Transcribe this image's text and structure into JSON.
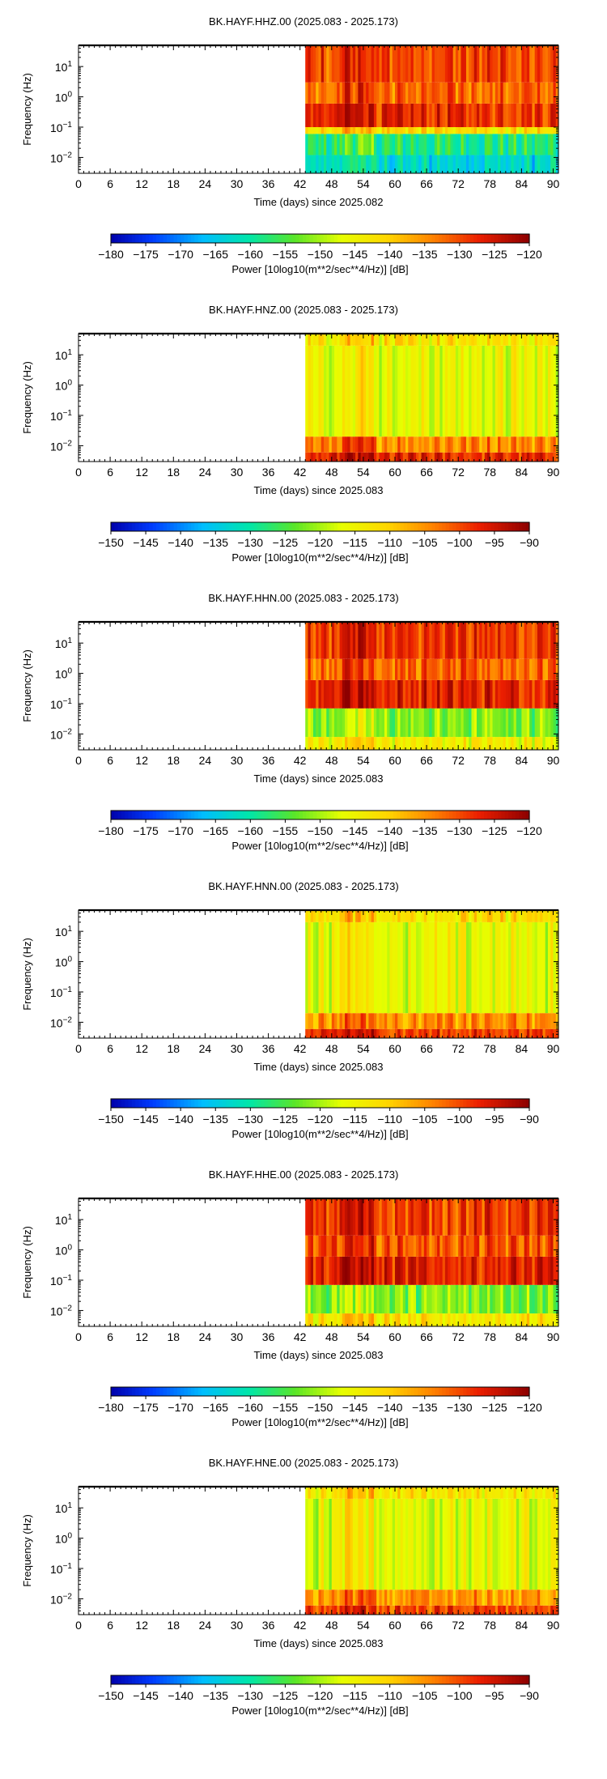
{
  "chart_data": [
    {
      "type": "heatmap",
      "title": "BK.HAYF.HHZ.00 (2025.083 - 2025.173)",
      "xlabel": "Time (days) since 2025.082",
      "ylabel": "Frequency (Hz)",
      "xlim": [
        0,
        91
      ],
      "x_ticks": [
        "0",
        "6",
        "12",
        "18",
        "24",
        "30",
        "36",
        "42",
        "48",
        "54",
        "60",
        "66",
        "72",
        "78",
        "84",
        "90"
      ],
      "yscale": "log",
      "ylim": [
        0.003,
        50
      ],
      "y_ticks": [
        {
          "mantissa": "10",
          "exp": "1"
        },
        {
          "mantissa": "10",
          "exp": "0"
        },
        {
          "mantissa": "10",
          "exp": "−1"
        },
        {
          "mantissa": "10",
          "exp": "−2"
        }
      ],
      "data_start_day": 43,
      "colorbar": {
        "label": "Power [10log10(m**2/sec**4/Hz)] [dB]",
        "range": [
          -180,
          -120
        ],
        "ticks": [
          "−180",
          "−175",
          "−170",
          "−165",
          "−160",
          "−155",
          "−150",
          "−145",
          "−140",
          "−135",
          "−130",
          "−125",
          "−120"
        ]
      },
      "bands": [
        {
          "f_min": 0.003,
          "f_max": 0.012,
          "power": -163
        },
        {
          "f_min": 0.012,
          "f_max": 0.06,
          "power": -158
        },
        {
          "f_min": 0.06,
          "f_max": 0.1,
          "power": -142
        },
        {
          "f_min": 0.1,
          "f_max": 0.6,
          "power": -128
        },
        {
          "f_min": 0.6,
          "f_max": 3,
          "power": -132
        },
        {
          "f_min": 3,
          "f_max": 50,
          "power": -130
        }
      ]
    },
    {
      "type": "heatmap",
      "title": "BK.HAYF.HNZ.00 (2025.083 - 2025.173)",
      "xlabel": "Time (days) since 2025.083",
      "ylabel": "Frequency (Hz)",
      "xlim": [
        0,
        91
      ],
      "x_ticks": [
        "0",
        "6",
        "12",
        "18",
        "24",
        "30",
        "36",
        "42",
        "48",
        "54",
        "60",
        "66",
        "72",
        "78",
        "84",
        "90"
      ],
      "yscale": "log",
      "ylim": [
        0.003,
        50
      ],
      "y_ticks": [
        {
          "mantissa": "10",
          "exp": "1"
        },
        {
          "mantissa": "10",
          "exp": "0"
        },
        {
          "mantissa": "10",
          "exp": "−1"
        },
        {
          "mantissa": "10",
          "exp": "−2"
        }
      ],
      "data_start_day": 43,
      "colorbar": {
        "label": "Power [10log10(m**2/sec**4/Hz)] [dB]",
        "range": [
          -150,
          -90
        ],
        "ticks": [
          "−150",
          "−145",
          "−140",
          "−135",
          "−130",
          "−125",
          "−120",
          "−115",
          "−110",
          "−105",
          "−100",
          "−95",
          "−90"
        ]
      },
      "bands": [
        {
          "f_min": 0.003,
          "f_max": 0.006,
          "power": -98
        },
        {
          "f_min": 0.006,
          "f_max": 0.02,
          "power": -104
        },
        {
          "f_min": 0.02,
          "f_max": 20,
          "power": -116
        },
        {
          "f_min": 20,
          "f_max": 50,
          "power": -113
        }
      ]
    },
    {
      "type": "heatmap",
      "title": "BK.HAYF.HHN.00 (2025.083 - 2025.173)",
      "xlabel": "Time (days) since 2025.083",
      "ylabel": "Frequency (Hz)",
      "xlim": [
        0,
        91
      ],
      "x_ticks": [
        "0",
        "6",
        "12",
        "18",
        "24",
        "30",
        "36",
        "42",
        "48",
        "54",
        "60",
        "66",
        "72",
        "78",
        "84",
        "90"
      ],
      "yscale": "log",
      "ylim": [
        0.003,
        50
      ],
      "y_ticks": [
        {
          "mantissa": "10",
          "exp": "1"
        },
        {
          "mantissa": "10",
          "exp": "0"
        },
        {
          "mantissa": "10",
          "exp": "−1"
        },
        {
          "mantissa": "10",
          "exp": "−2"
        }
      ],
      "data_start_day": 43,
      "colorbar": {
        "label": "Power [10log10(m**2/sec**4/Hz)] [dB]",
        "range": [
          -180,
          -120
        ],
        "ticks": [
          "−180",
          "−175",
          "−170",
          "−165",
          "−160",
          "−155",
          "−150",
          "−145",
          "−140",
          "−135",
          "−130",
          "−125",
          "−120"
        ]
      },
      "bands": [
        {
          "f_min": 0.003,
          "f_max": 0.008,
          "power": -144
        },
        {
          "f_min": 0.008,
          "f_max": 0.07,
          "power": -152
        },
        {
          "f_min": 0.07,
          "f_max": 0.6,
          "power": -127
        },
        {
          "f_min": 0.6,
          "f_max": 3,
          "power": -132
        },
        {
          "f_min": 3,
          "f_max": 50,
          "power": -129
        }
      ]
    },
    {
      "type": "heatmap",
      "title": "BK.HAYF.HNN.00 (2025.083 - 2025.173)",
      "xlabel": "Time (days) since 2025.083",
      "ylabel": "Frequency (Hz)",
      "xlim": [
        0,
        91
      ],
      "x_ticks": [
        "0",
        "6",
        "12",
        "18",
        "24",
        "30",
        "36",
        "42",
        "48",
        "54",
        "60",
        "66",
        "72",
        "78",
        "84",
        "90"
      ],
      "yscale": "log",
      "ylim": [
        0.003,
        50
      ],
      "y_ticks": [
        {
          "mantissa": "10",
          "exp": "1"
        },
        {
          "mantissa": "10",
          "exp": "0"
        },
        {
          "mantissa": "10",
          "exp": "−1"
        },
        {
          "mantissa": "10",
          "exp": "−2"
        }
      ],
      "data_start_day": 43,
      "colorbar": {
        "label": "Power [10log10(m**2/sec**4/Hz)] [dB]",
        "range": [
          -150,
          -90
        ],
        "ticks": [
          "−150",
          "−145",
          "−140",
          "−135",
          "−130",
          "−125",
          "−120",
          "−115",
          "−110",
          "−105",
          "−100",
          "−95",
          "−90"
        ]
      },
      "bands": [
        {
          "f_min": 0.003,
          "f_max": 0.006,
          "power": -99
        },
        {
          "f_min": 0.006,
          "f_max": 0.02,
          "power": -105
        },
        {
          "f_min": 0.02,
          "f_max": 20,
          "power": -116
        },
        {
          "f_min": 20,
          "f_max": 50,
          "power": -112
        }
      ]
    },
    {
      "type": "heatmap",
      "title": "BK.HAYF.HHE.00 (2025.083 - 2025.173)",
      "xlabel": "Time (days) since 2025.083",
      "ylabel": "Frequency (Hz)",
      "xlim": [
        0,
        91
      ],
      "x_ticks": [
        "0",
        "6",
        "12",
        "18",
        "24",
        "30",
        "36",
        "42",
        "48",
        "54",
        "60",
        "66",
        "72",
        "78",
        "84",
        "90"
      ],
      "yscale": "log",
      "ylim": [
        0.003,
        50
      ],
      "y_ticks": [
        {
          "mantissa": "10",
          "exp": "1"
        },
        {
          "mantissa": "10",
          "exp": "0"
        },
        {
          "mantissa": "10",
          "exp": "−1"
        },
        {
          "mantissa": "10",
          "exp": "−2"
        }
      ],
      "data_start_day": 43,
      "colorbar": {
        "label": "Power [10log10(m**2/sec**4/Hz)] [dB]",
        "range": [
          -180,
          -120
        ],
        "ticks": [
          "−180",
          "−175",
          "−170",
          "−165",
          "−160",
          "−155",
          "−150",
          "−145",
          "−140",
          "−135",
          "−130",
          "−125",
          "−120"
        ]
      },
      "bands": [
        {
          "f_min": 0.003,
          "f_max": 0.008,
          "power": -143
        },
        {
          "f_min": 0.008,
          "f_max": 0.07,
          "power": -152
        },
        {
          "f_min": 0.07,
          "f_max": 0.6,
          "power": -127
        },
        {
          "f_min": 0.6,
          "f_max": 3,
          "power": -131
        },
        {
          "f_min": 3,
          "f_max": 50,
          "power": -129
        }
      ]
    },
    {
      "type": "heatmap",
      "title": "BK.HAYF.HNE.00 (2025.083 - 2025.173)",
      "xlabel": "Time (days) since 2025.083",
      "ylabel": "Frequency (Hz)",
      "xlim": [
        0,
        91
      ],
      "x_ticks": [
        "0",
        "6",
        "12",
        "18",
        "24",
        "30",
        "36",
        "42",
        "48",
        "54",
        "60",
        "66",
        "72",
        "78",
        "84",
        "90"
      ],
      "yscale": "log",
      "ylim": [
        0.003,
        50
      ],
      "y_ticks": [
        {
          "mantissa": "10",
          "exp": "1"
        },
        {
          "mantissa": "10",
          "exp": "0"
        },
        {
          "mantissa": "10",
          "exp": "−1"
        },
        {
          "mantissa": "10",
          "exp": "−2"
        }
      ],
      "data_start_day": 43,
      "colorbar": {
        "label": "Power [10log10(m**2/sec**4/Hz)] [dB]",
        "range": [
          -150,
          -90
        ],
        "ticks": [
          "−150",
          "−145",
          "−140",
          "−135",
          "−130",
          "−125",
          "−120",
          "−115",
          "−110",
          "−105",
          "−100",
          "−95",
          "−90"
        ]
      },
      "bands": [
        {
          "f_min": 0.003,
          "f_max": 0.006,
          "power": -100
        },
        {
          "f_min": 0.006,
          "f_max": 0.02,
          "power": -106
        },
        {
          "f_min": 0.02,
          "f_max": 20,
          "power": -117
        },
        {
          "f_min": 20,
          "f_max": 50,
          "power": -113
        }
      ]
    }
  ]
}
